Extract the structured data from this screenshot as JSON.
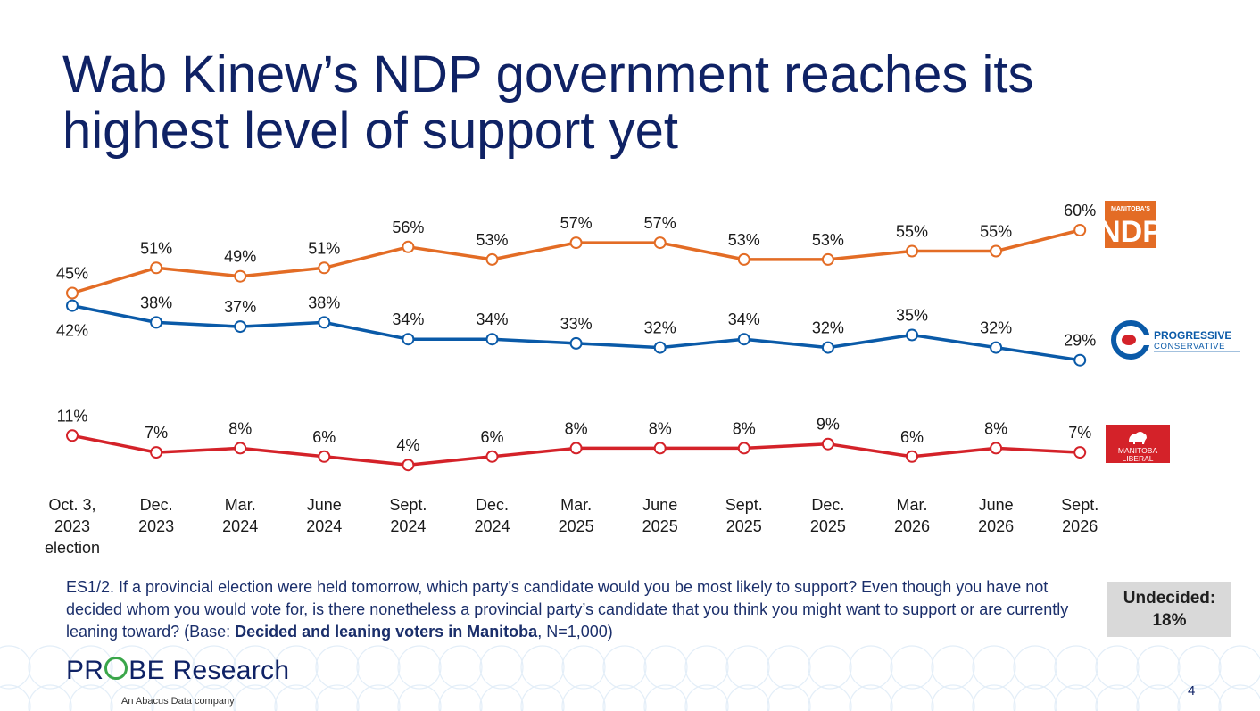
{
  "title": "Wab Kinew’s NDP government reaches its highest level of support yet",
  "chart_data": {
    "type": "line",
    "x": [
      [
        "Oct. 3,",
        "2023",
        "election"
      ],
      [
        "Dec.",
        "2023"
      ],
      [
        "Mar.",
        "2024"
      ],
      [
        "June",
        "2024"
      ],
      [
        "Sept.",
        "2024"
      ],
      [
        "Dec.",
        "2024"
      ],
      [
        "Mar.",
        "2025"
      ],
      [
        "June",
        "2025"
      ],
      [
        "Sept.",
        "2025"
      ],
      [
        "Dec.",
        "2025"
      ],
      [
        "Mar.",
        "2026"
      ],
      [
        "June",
        "2026"
      ],
      [
        "Sept.",
        "2026"
      ]
    ],
    "ylim": [
      0,
      65
    ],
    "grid": false,
    "series": [
      {
        "key": "ndp",
        "name": "",
        "color": "#e36c25",
        "values": [
          45,
          51,
          49,
          51,
          56,
          53,
          57,
          57,
          53,
          53,
          55,
          55,
          60
        ],
        "label_pos": "above"
      },
      {
        "key": "pc",
        "name": "",
        "color": "#0a5aa8",
        "values": [
          42,
          38,
          37,
          38,
          34,
          34,
          33,
          32,
          34,
          32,
          35,
          32,
          29
        ],
        "label_pos": "above",
        "first_label_pos": "below"
      },
      {
        "key": "lib",
        "name": "",
        "color": "#d42229",
        "values": [
          11,
          7,
          8,
          6,
          4,
          6,
          8,
          8,
          8,
          9,
          6,
          8,
          7
        ],
        "label_pos": "above"
      }
    ],
    "value_suffix": "%"
  },
  "logos": {
    "ndp": {
      "top": "MANITOBA'S",
      "main": "NDP",
      "color": "#e36c25"
    },
    "pc": {
      "line1": "PROGRESSIVE",
      "line2": "CONSERVATIVE",
      "color": "#0a5aa8"
    },
    "lib": {
      "line1": "MANITOBA",
      "line2": "LIBERAL",
      "color": "#d42229"
    }
  },
  "footnote": {
    "text": "ES1/2. If a provincial election were held tomorrow, which party’s candidate would you be most likely to support? Even though you have not decided whom you would vote for, is there nonetheless a provincial party’s candidate that you think you might want to support or are currently leaning toward? (Base: ",
    "bold": "Decided and leaning voters in Manitoba",
    "end": ", N=1,000)"
  },
  "undecided": {
    "label": "Undecided:",
    "value": "18%"
  },
  "footer": {
    "brand_pre": "PR",
    "brand_post": "BE Research",
    "tagline": "An Abacus Data company"
  },
  "page_number": "4"
}
